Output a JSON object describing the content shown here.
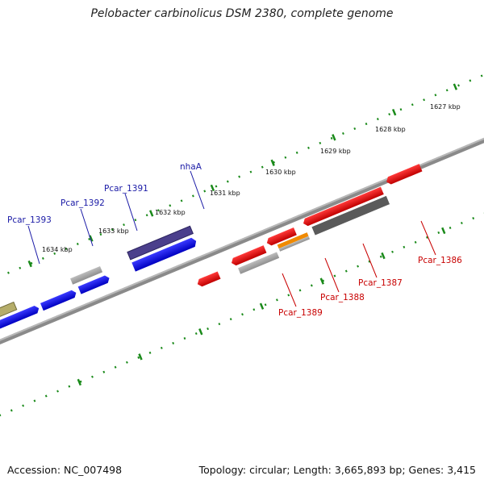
{
  "title": "Pelobacter carbinolicus DSM 2380, complete genome",
  "footer": {
    "accession": "Accession: NC_007498",
    "summary": "Topology: circular; Length: 3,665,893 bp; Genes: 3,415"
  },
  "ticks": [
    "1627 kbp",
    "1628 kbp",
    "1629 kbp",
    "1630 kbp",
    "1631 kbp",
    "1632 kbp",
    "1633 kbp",
    "1634 kbp"
  ],
  "genes": {
    "forward": [
      "Pcar_1393",
      "Pcar_1392",
      "Pcar_1391",
      "nhaA"
    ],
    "reverse": [
      "Pcar_1389",
      "Pcar_1388",
      "Pcar_1387",
      "Pcar_1386"
    ]
  },
  "colors": {
    "forward_cds": "#0000ee",
    "reverse_cds": "#ee0000",
    "nhaA_feature": "#4b3f8c",
    "olive_feature": "#b5ad6a",
    "gray_feature": "#a8a8a8",
    "dark_gray_feature": "#5a5a5a",
    "orange_feature": "#f08a00",
    "tick": "#1a8a1a",
    "backbone": "#888888"
  }
}
